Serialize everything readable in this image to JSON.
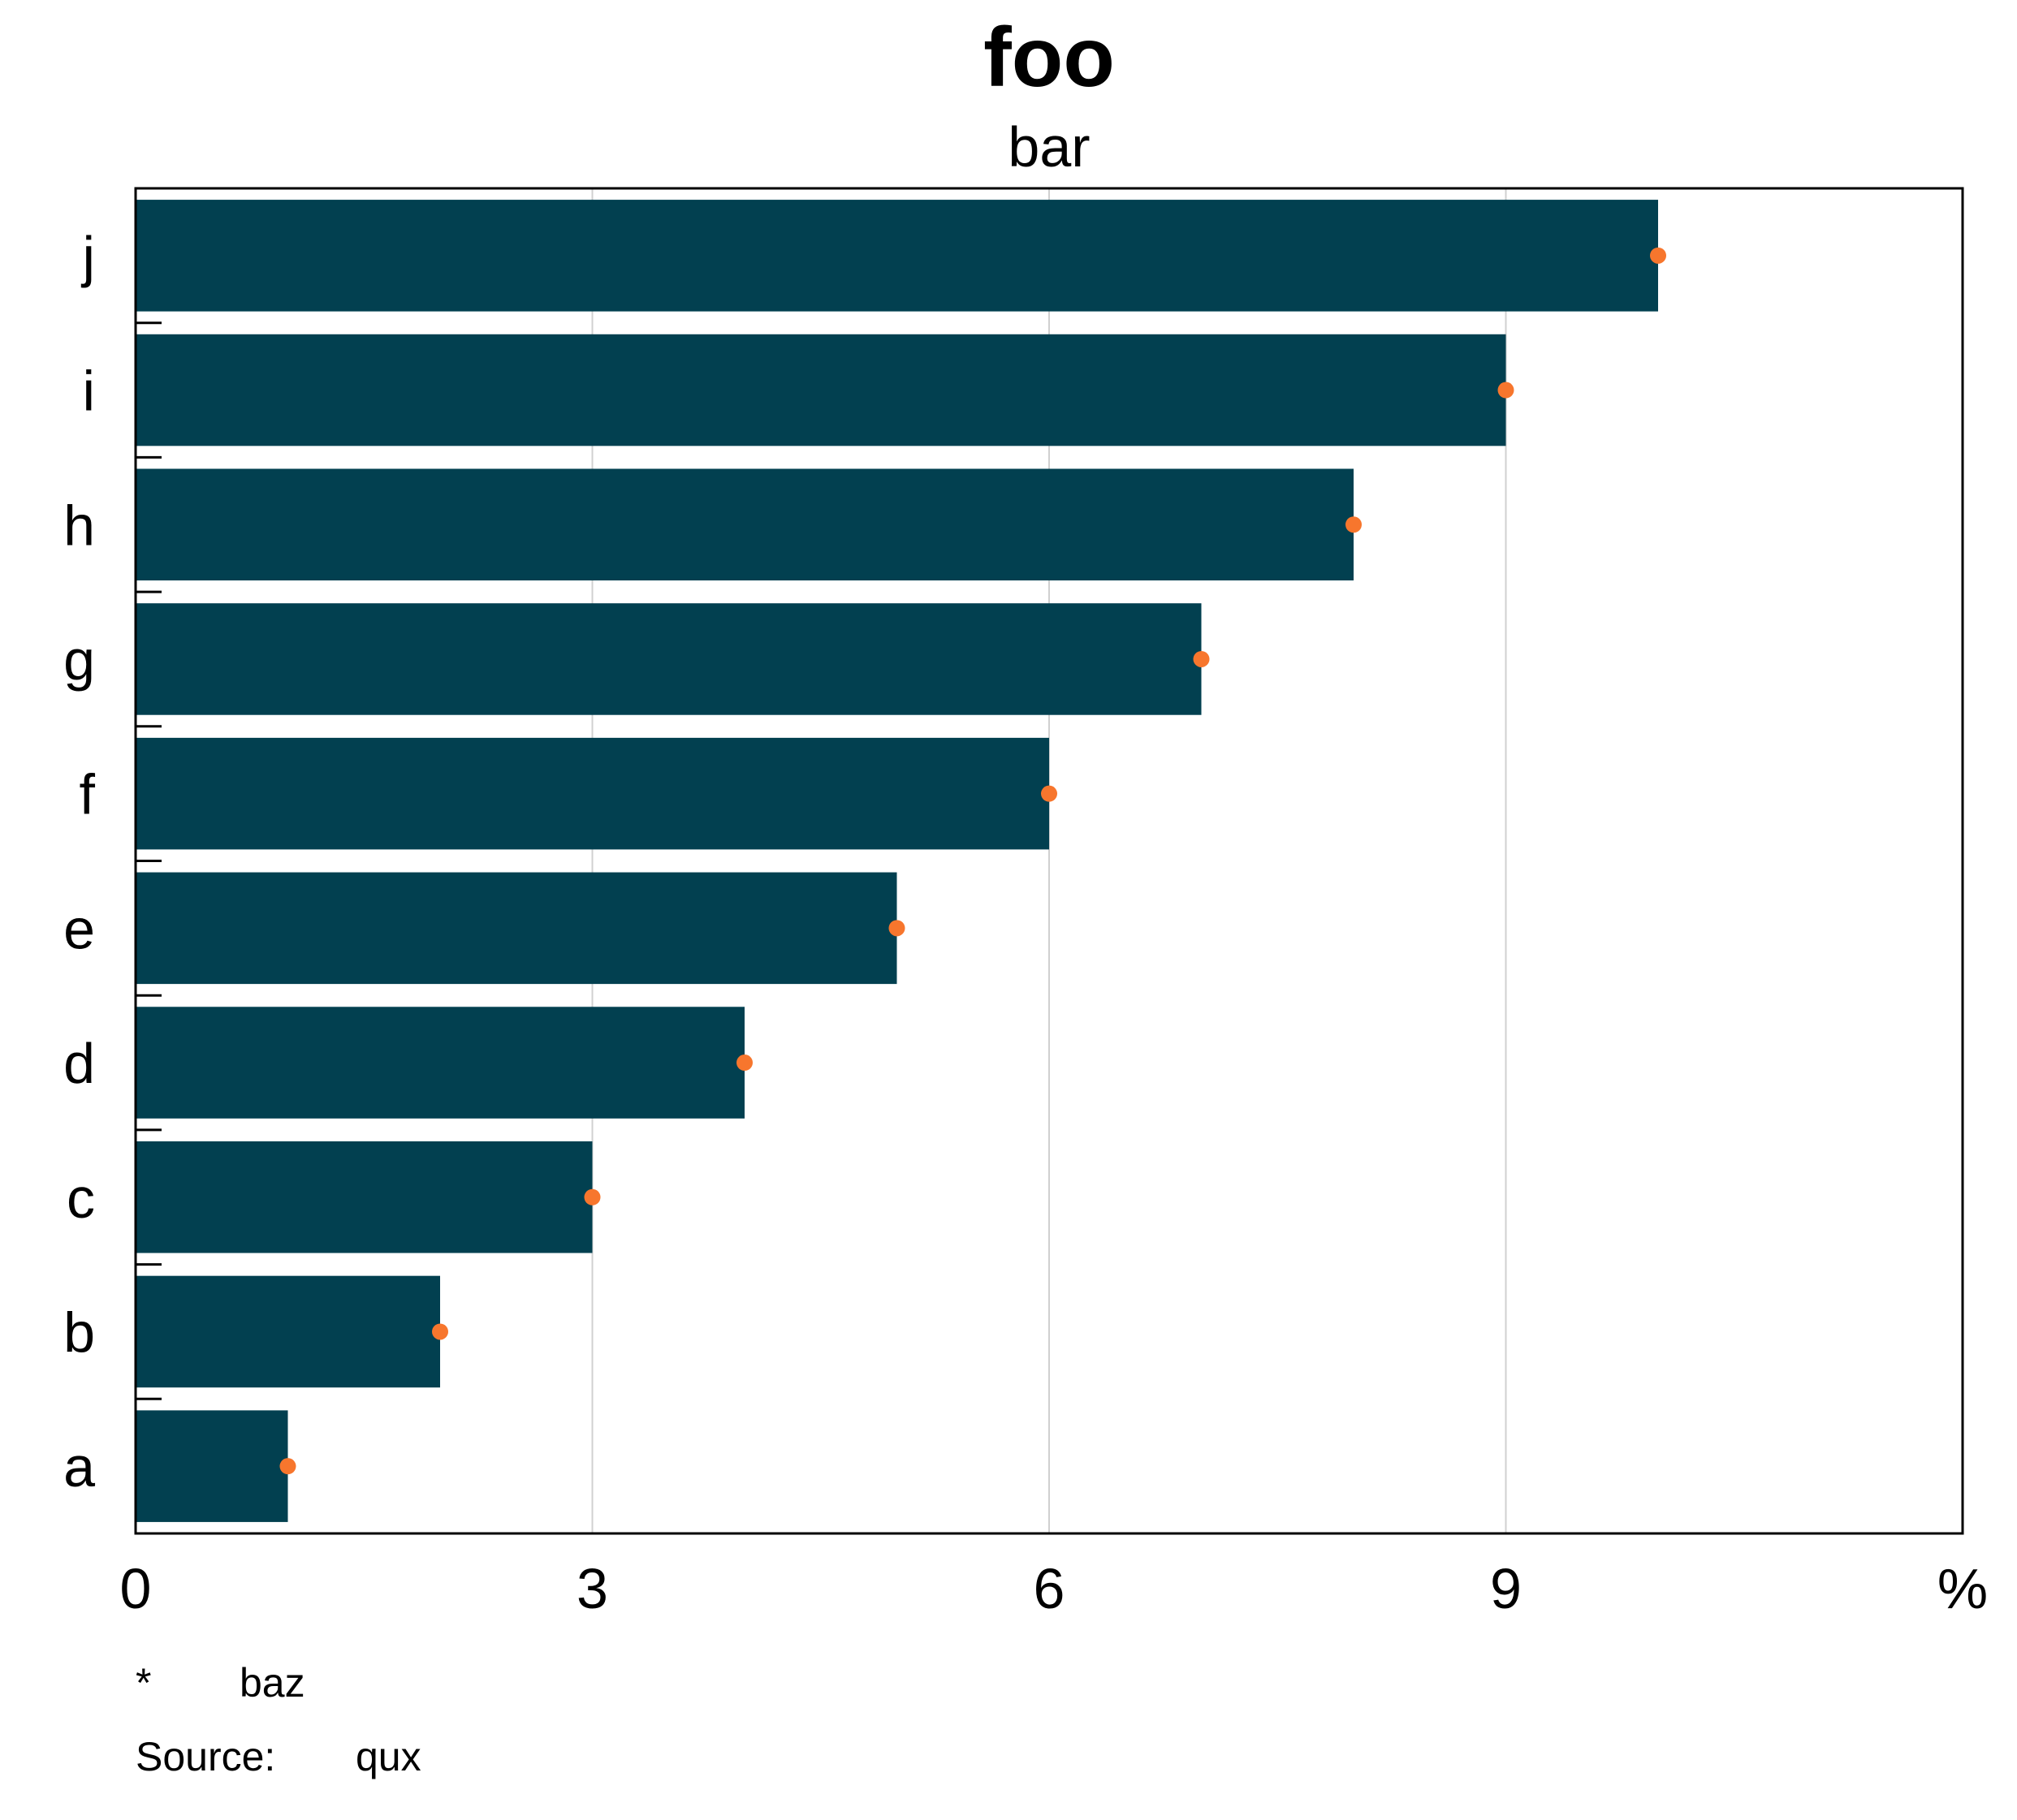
{
  "chart_data": {
    "type": "bar",
    "orientation": "horizontal",
    "title": "foo",
    "subtitle": "bar",
    "categories": [
      "a",
      "b",
      "c",
      "d",
      "e",
      "f",
      "g",
      "h",
      "i",
      "j"
    ],
    "series": [
      {
        "type": "bar",
        "values": [
          1,
          2,
          3,
          4,
          5,
          6,
          7,
          8,
          9,
          10
        ]
      },
      {
        "type": "scatter",
        "values": [
          1,
          2,
          3,
          4,
          5,
          6,
          7,
          8,
          9,
          10
        ]
      }
    ],
    "xlim": [
      0,
      12
    ],
    "xticks": [
      0,
      3,
      6,
      9
    ],
    "x_unit": "%",
    "grid": "vertical",
    "colors": {
      "bar": "#024050",
      "dot": "#F7762D",
      "grid": "#D0D0D0"
    },
    "footnote": {
      "marker": "*",
      "text": "baz"
    },
    "source": {
      "label": "Source:",
      "text": "qux"
    }
  }
}
